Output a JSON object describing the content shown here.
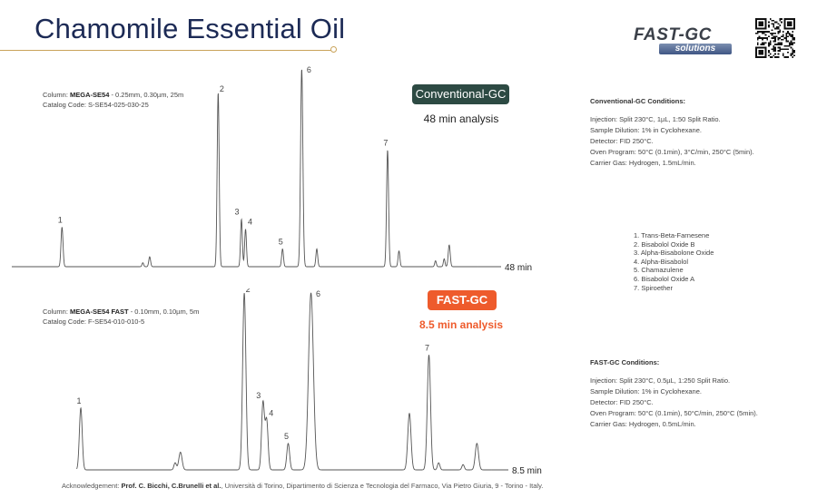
{
  "title": "Chamomile Essential Oil",
  "logo": {
    "text1": "FAST-GC",
    "text2": "solutions"
  },
  "colors": {
    "title": "#1c2a55",
    "accent_rule": "#c9a35a",
    "conventional_badge": "#2d4a43",
    "fast_badge": "#ee5b2c"
  },
  "conventional": {
    "column_prefix": "Column:",
    "column_name": "MEGA-SE54",
    "column_rest": " - 0.25mm, 0.30µm, 25m",
    "catalog": "Catalog Code: S-SE54-025-030-25",
    "badge": "Conventional-GC",
    "analysis": "48 min analysis",
    "axis_end_label": "48 min",
    "conditions_title": "Conventional-GC Conditions:",
    "conditions": [
      "Injection: Split 230°C, 1µL, 1:50 Split Ratio.",
      "Sample Dilution: 1% in Cyclohexane.",
      "Detector: FID 250°C.",
      "Oven Program: 50°C (0.1min), 3°C/min, 250°C (5min).",
      "Carrier Gas: Hydrogen, 1.5mL/min."
    ]
  },
  "fast": {
    "column_prefix": "Column:",
    "column_name": "MEGA-SE54 FAST",
    "column_rest": " - 0.10mm, 0.10µm, 5m",
    "catalog": "Catalog Code: F-SE54-010-010-5",
    "badge": "FAST-GC",
    "analysis": "8.5 min analysis",
    "axis_end_label": "8.5 min",
    "conditions_title": "FAST-GC Conditions:",
    "conditions": [
      "Injection: Split 230°C, 0.5µL, 1:250 Split Ratio.",
      "Sample Dilution: 1% in Cyclohexane.",
      "Detector: FID 250°C.",
      "Oven Program: 50°C (0.1min), 50°C/min, 250°C (5min).",
      "Carrier Gas: Hydrogen, 0.5mL/min."
    ]
  },
  "compounds": [
    "1. Trans-Beta-Farnesene",
    "2. Bisabolol Oxide B",
    "3. Alpha-Bisabolone Oxide",
    "4. Alpha-Bisabolol",
    "5. Chamazulene",
    "6. Bisabolol Oxide A",
    "7. Spiroether"
  ],
  "acknowledgement": {
    "prefix": "Acknowledgement: ",
    "names": "Prof. C. Bicchi, C.Brunelli et al.",
    "rest": ", Università di Torino, Dipartimento di Scienza e Tecnologia del Farmaco, Via Pietro Giuria, 9 - Torino - Italy."
  },
  "chart_data": [
    {
      "type": "line",
      "xlim": [
        0,
        1
      ],
      "ylim": [
        0,
        1
      ],
      "peaks": [
        {
          "x": 0.1,
          "h": 0.2,
          "w": 0.0022,
          "label": "1"
        },
        {
          "x": 0.277,
          "h": 0.02,
          "w": 0.0018,
          "label": ""
        },
        {
          "x": 0.292,
          "h": 0.05,
          "w": 0.002,
          "label": ""
        },
        {
          "x": 0.442,
          "h": 0.88,
          "w": 0.0022,
          "label": "2"
        },
        {
          "x": 0.493,
          "h": 0.24,
          "w": 0.002,
          "label": "3"
        },
        {
          "x": 0.502,
          "h": 0.19,
          "w": 0.002,
          "label": "4"
        },
        {
          "x": 0.583,
          "h": 0.09,
          "w": 0.002,
          "label": "5"
        },
        {
          "x": 0.625,
          "h": 1.0,
          "w": 0.0025,
          "label": "6"
        },
        {
          "x": 0.658,
          "h": 0.09,
          "w": 0.002,
          "label": ""
        },
        {
          "x": 0.813,
          "h": 0.59,
          "w": 0.0022,
          "label": "7"
        },
        {
          "x": 0.838,
          "h": 0.08,
          "w": 0.002,
          "label": ""
        },
        {
          "x": 0.918,
          "h": 0.03,
          "w": 0.0018,
          "label": ""
        },
        {
          "x": 0.937,
          "h": 0.04,
          "w": 0.0018,
          "label": ""
        },
        {
          "x": 0.948,
          "h": 0.11,
          "w": 0.0022,
          "label": ""
        }
      ]
    },
    {
      "type": "line",
      "xlim": [
        0,
        1
      ],
      "ylim": [
        0,
        1
      ],
      "peaks": [
        {
          "x": 0.0,
          "h": 0.35,
          "w": 0.0035,
          "label": "1"
        },
        {
          "x": 0.232,
          "h": 0.04,
          "w": 0.003,
          "label": ""
        },
        {
          "x": 0.245,
          "h": 0.1,
          "w": 0.004,
          "label": ""
        },
        {
          "x": 0.402,
          "h": 1.0,
          "w": 0.004,
          "label": "2"
        },
        {
          "x": 0.448,
          "h": 0.38,
          "w": 0.0035,
          "label": "3"
        },
        {
          "x": 0.457,
          "h": 0.28,
          "w": 0.0035,
          "label": "4"
        },
        {
          "x": 0.51,
          "h": 0.15,
          "w": 0.0035,
          "label": "5"
        },
        {
          "x": 0.566,
          "h": 1.0,
          "w": 0.006,
          "label": "6"
        },
        {
          "x": 0.808,
          "h": 0.32,
          "w": 0.004,
          "label": ""
        },
        {
          "x": 0.856,
          "h": 0.65,
          "w": 0.004,
          "label": "7"
        },
        {
          "x": 0.88,
          "h": 0.04,
          "w": 0.003,
          "label": ""
        },
        {
          "x": 0.94,
          "h": 0.03,
          "w": 0.003,
          "label": ""
        },
        {
          "x": 0.974,
          "h": 0.15,
          "w": 0.004,
          "label": ""
        }
      ]
    }
  ]
}
